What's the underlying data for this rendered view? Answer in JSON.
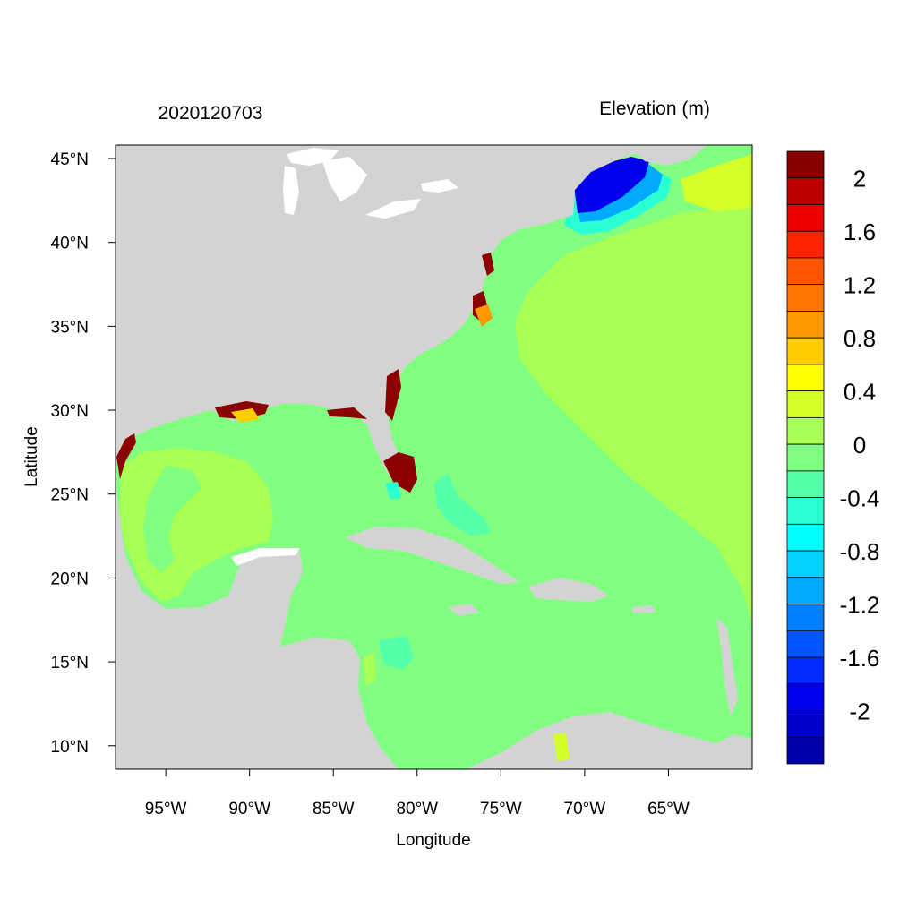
{
  "header": {
    "date_label": "2020120703",
    "variable_label": "Elevation (m)"
  },
  "axes": {
    "xlabel": "Longitude",
    "ylabel": "Latitude",
    "x_ticks": [
      "95°W",
      "90°W",
      "85°W",
      "80°W",
      "75°W",
      "70°W",
      "65°W"
    ],
    "y_ticks": [
      "45°N",
      "40°N",
      "35°N",
      "30°N",
      "25°N",
      "20°N",
      "15°N",
      "10°N"
    ],
    "lon_range": [
      -98,
      -60
    ],
    "lat_range": [
      8.6,
      45.8
    ]
  },
  "colors": {
    "land": "#d3d3d3",
    "mean_level": "#80ff80",
    "slightly_positive": "#aaff55",
    "high": "#8b0000",
    "low": "#0000c0"
  },
  "colorbar": {
    "labels": [
      "2",
      "1.6",
      "1.2",
      "0.8",
      "0.4",
      "0",
      "-0.4",
      "-0.8",
      "-1.2",
      "-1.6",
      "-2"
    ],
    "colors": [
      "#880000",
      "#bb0000",
      "#ee0000",
      "#ff2200",
      "#ff5500",
      "#ff7700",
      "#ff9900",
      "#ffcc00",
      "#ffff00",
      "#d4ff2a",
      "#aaff55",
      "#80ff80",
      "#55ffaa",
      "#2affd4",
      "#00ffff",
      "#00d4ff",
      "#00aaff",
      "#0080ff",
      "#0055ff",
      "#002aff",
      "#0000ee",
      "#0000cc",
      "#0000aa"
    ]
  }
}
